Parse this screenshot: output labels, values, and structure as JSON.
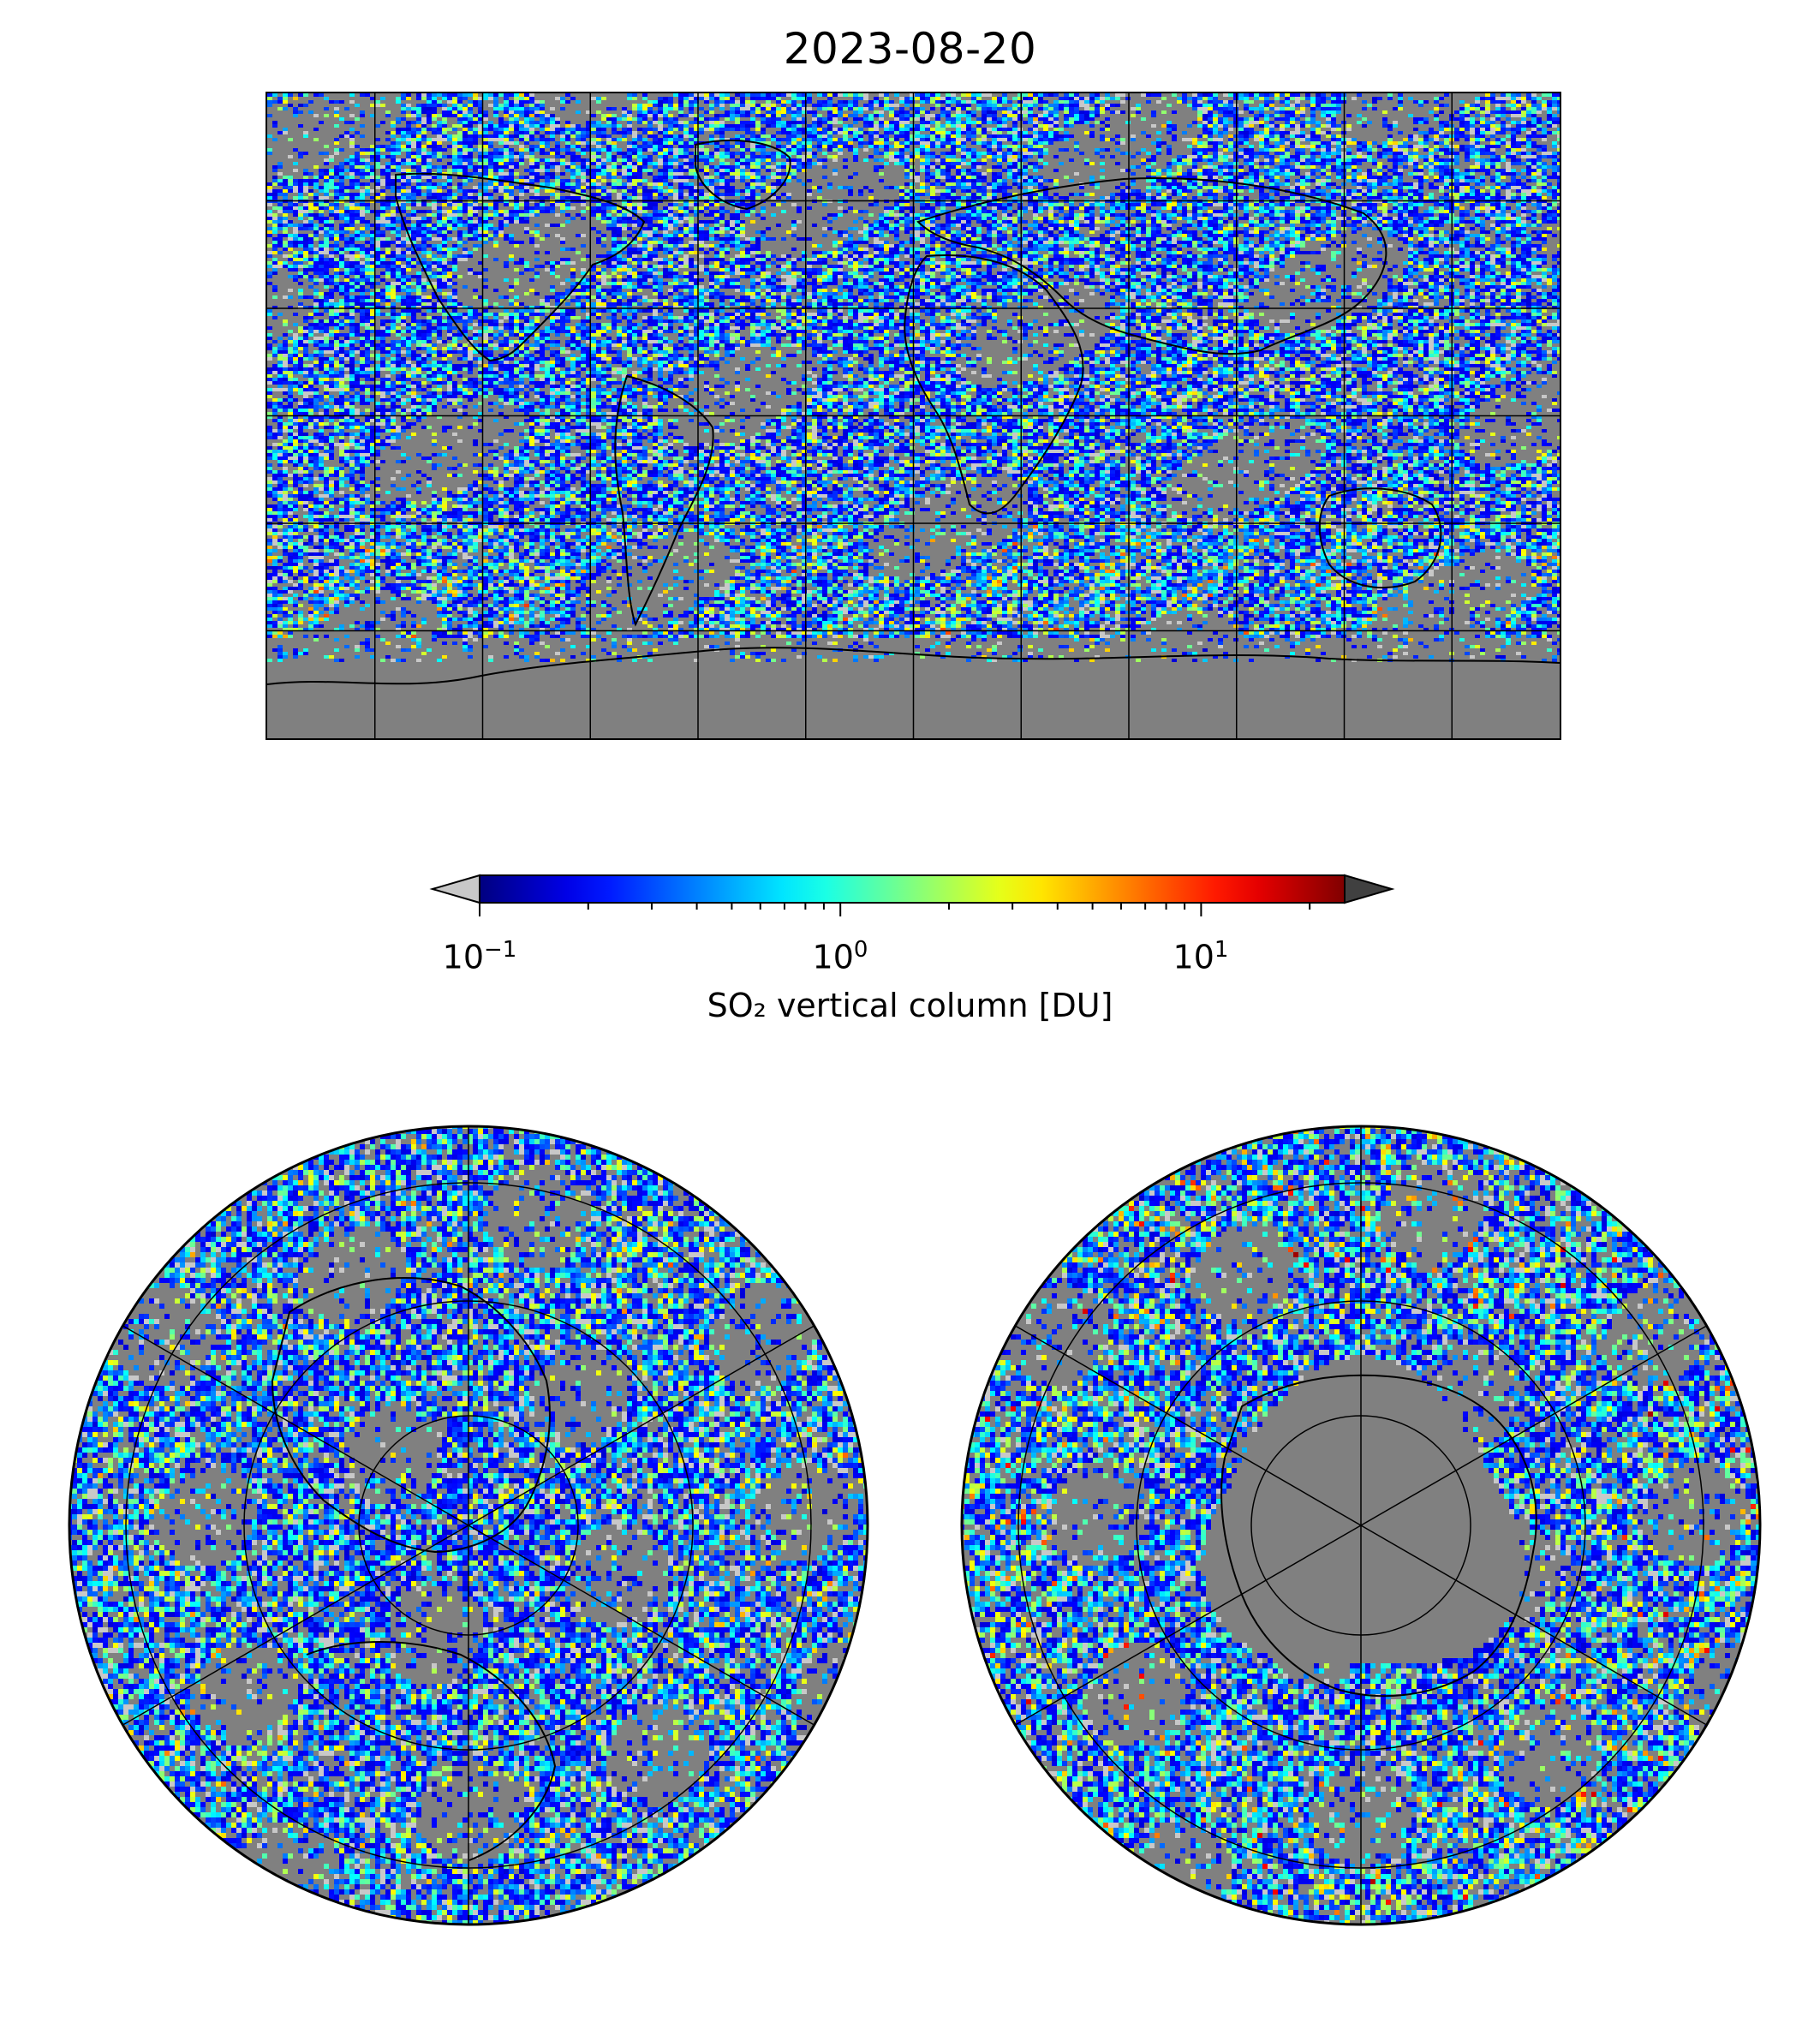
{
  "title": "2023-08-20",
  "colorbar": {
    "label": "SO₂ vertical column [DU]",
    "scale": "log",
    "range": [
      0.1,
      25
    ],
    "ticks": [
      {
        "base": "10",
        "exp": "−1",
        "value": 0.1
      },
      {
        "base": "10",
        "exp": "0",
        "value": 1
      },
      {
        "base": "10",
        "exp": "1",
        "value": 10
      }
    ],
    "extend": "both",
    "under_color": "#c8c8c8",
    "over_color": "#404040",
    "colormap": "jet"
  },
  "maps": {
    "global": {
      "projection": "plate-carree",
      "background": "#808080",
      "gridlines": true
    },
    "north_polar": {
      "projection": "north-polar-stereographic",
      "gridlines": true
    },
    "south_polar": {
      "projection": "south-polar-stereographic",
      "gridlines": true
    }
  }
}
